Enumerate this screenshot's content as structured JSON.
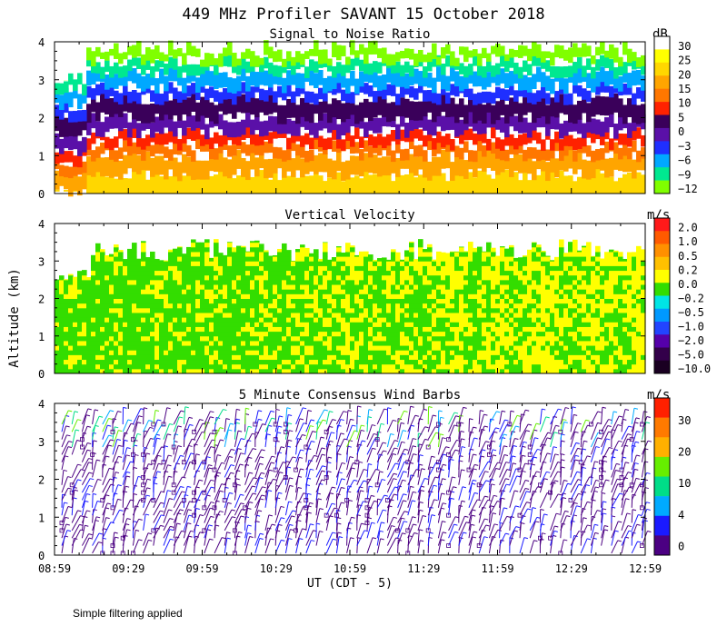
{
  "page": {
    "title": "449 MHz Profiler SAVANT 15 October 2018",
    "y_axis_label": "Altitude (km)",
    "x_axis_label": "UT  (CDT - 5)",
    "footer_note": "Simple filtering applied"
  },
  "chart_data": [
    {
      "type": "heatmap",
      "title": "Signal to Noise Ratio",
      "unit": "dB",
      "ylim": [
        0,
        4
      ],
      "y_ticks": [
        "0",
        "1",
        "2",
        "3",
        "4"
      ],
      "x_ticks": [
        "08:59",
        "09:29",
        "09:59",
        "10:29",
        "10:59",
        "11:29",
        "11:59",
        "12:29",
        "12:59"
      ],
      "colorbar": {
        "labels": [
          "30",
          "25",
          "20",
          "15",
          "10",
          "5",
          "0",
          "−3",
          "−6",
          "−9",
          "−12"
        ],
        "colors": [
          "#ffffff",
          "#ffff00",
          "#ffd700",
          "#ffa500",
          "#ff7700",
          "#ff2200",
          "#3a005a",
          "#5a10a8",
          "#1f2fff",
          "#00a8ff",
          "#00e890",
          "#80ff00"
        ]
      },
      "layers_by_altitude_km": [
        {
          "from": 0.0,
          "to": 0.5,
          "color": "#ffd700"
        },
        {
          "from": 0.5,
          "to": 1.0,
          "color": "#ffa500"
        },
        {
          "from": 1.0,
          "to": 1.3,
          "color": "#ff7700"
        },
        {
          "from": 1.3,
          "to": 1.6,
          "color": "#ff2200"
        },
        {
          "from": 1.6,
          "to": 2.0,
          "color": "#5a10a8"
        },
        {
          "from": 2.0,
          "to": 2.5,
          "color": "#3a005a"
        },
        {
          "from": 2.5,
          "to": 2.8,
          "color": "#1f2fff"
        },
        {
          "from": 2.8,
          "to": 3.2,
          "color": "#00a8ff"
        },
        {
          "from": 3.2,
          "to": 3.5,
          "color": "#00e890"
        },
        {
          "from": 3.5,
          "to": 3.8,
          "color": "#80ff00"
        }
      ]
    },
    {
      "type": "heatmap",
      "title": "Vertical Velocity",
      "unit": "m/s",
      "ylim": [
        0,
        4
      ],
      "y_ticks": [
        "0",
        "1",
        "2",
        "3",
        "4"
      ],
      "colorbar": {
        "labels": [
          "2.0",
          "1.0",
          "0.5",
          "0.2",
          "0.0",
          "−0.2",
          "−0.5",
          "−1.0",
          "−2.0",
          "−5.0",
          "−10.0"
        ],
        "colors": [
          "#ff1a1a",
          "#ff5a00",
          "#ff9000",
          "#ffc000",
          "#ffff00",
          "#33dd00",
          "#00e5e5",
          "#0099ff",
          "#2244ff",
          "#5500aa",
          "#33004a",
          "#1a0022"
        ]
      },
      "dominant_colors": {
        "downward": "#33dd00",
        "upward": "#ffff00"
      }
    },
    {
      "type": "wind_barbs",
      "title": "5 Minute Consensus Wind Barbs",
      "unit": "m/s",
      "ylim": [
        0,
        4
      ],
      "y_ticks": [
        "0",
        "1",
        "2",
        "3",
        "4"
      ],
      "colorbar": {
        "labels": [
          "30",
          "20",
          "10",
          "4",
          "0"
        ],
        "colors": [
          "#ff2000",
          "#ff7a00",
          "#ffb000",
          "#66ee00",
          "#00dd88",
          "#00aaff",
          "#1a1aff",
          "#4b0082"
        ]
      },
      "dominant_colors": [
        "#4b0082",
        "#1a1aff"
      ]
    }
  ]
}
